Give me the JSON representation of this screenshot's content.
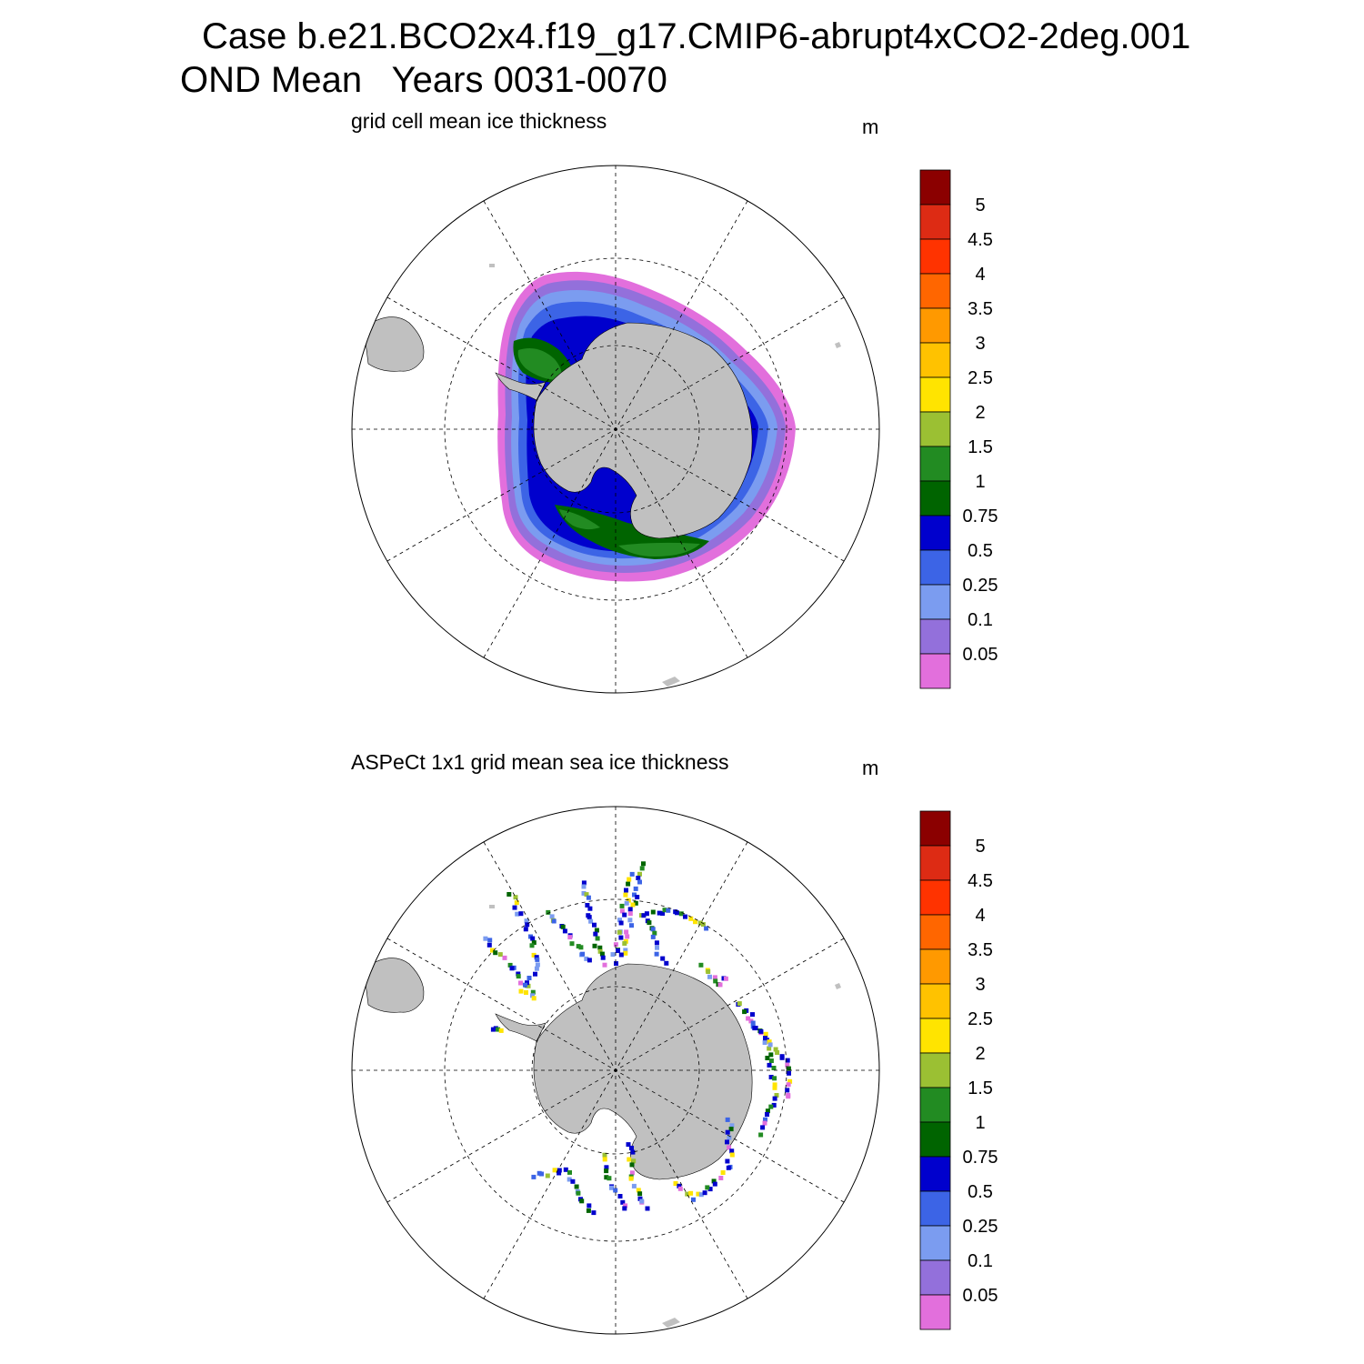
{
  "figure": {
    "title_line1": "Case b.e21.BCO2x4.f19_g17.CMIP6-abrupt4xCO2-2deg.001",
    "title_line2": "OND Mean   Years 0031-0070"
  },
  "panels": [
    {
      "title": "grid cell mean ice thickness",
      "units": "m",
      "field": "model ice thickness (continuous ring around Antarctica)"
    },
    {
      "title": "ASPeCt 1x1 grid mean sea ice thickness",
      "units": "m",
      "field": "observations along ship tracks (sparse)"
    }
  ],
  "colorbar": {
    "labels": [
      "5",
      "4.5",
      "4",
      "3.5",
      "3",
      "2.5",
      "2",
      "1.5",
      "1",
      "0.75",
      "0.5",
      "0.25",
      "0.1",
      "0.05"
    ],
    "colors": [
      "#8b0000",
      "#dd2b14",
      "#ff3300",
      "#ff6600",
      "#ff9900",
      "#ffc200",
      "#ffe400",
      "#9bc033",
      "#228b22",
      "#006400",
      "#0000cd",
      "#3c64e6",
      "#7b9cf0",
      "#9370db",
      "#e26fdc"
    ]
  },
  "map_colors": {
    "land": "#c0c0c0",
    "ocean": "#ffffff",
    "grid": "#000000"
  }
}
